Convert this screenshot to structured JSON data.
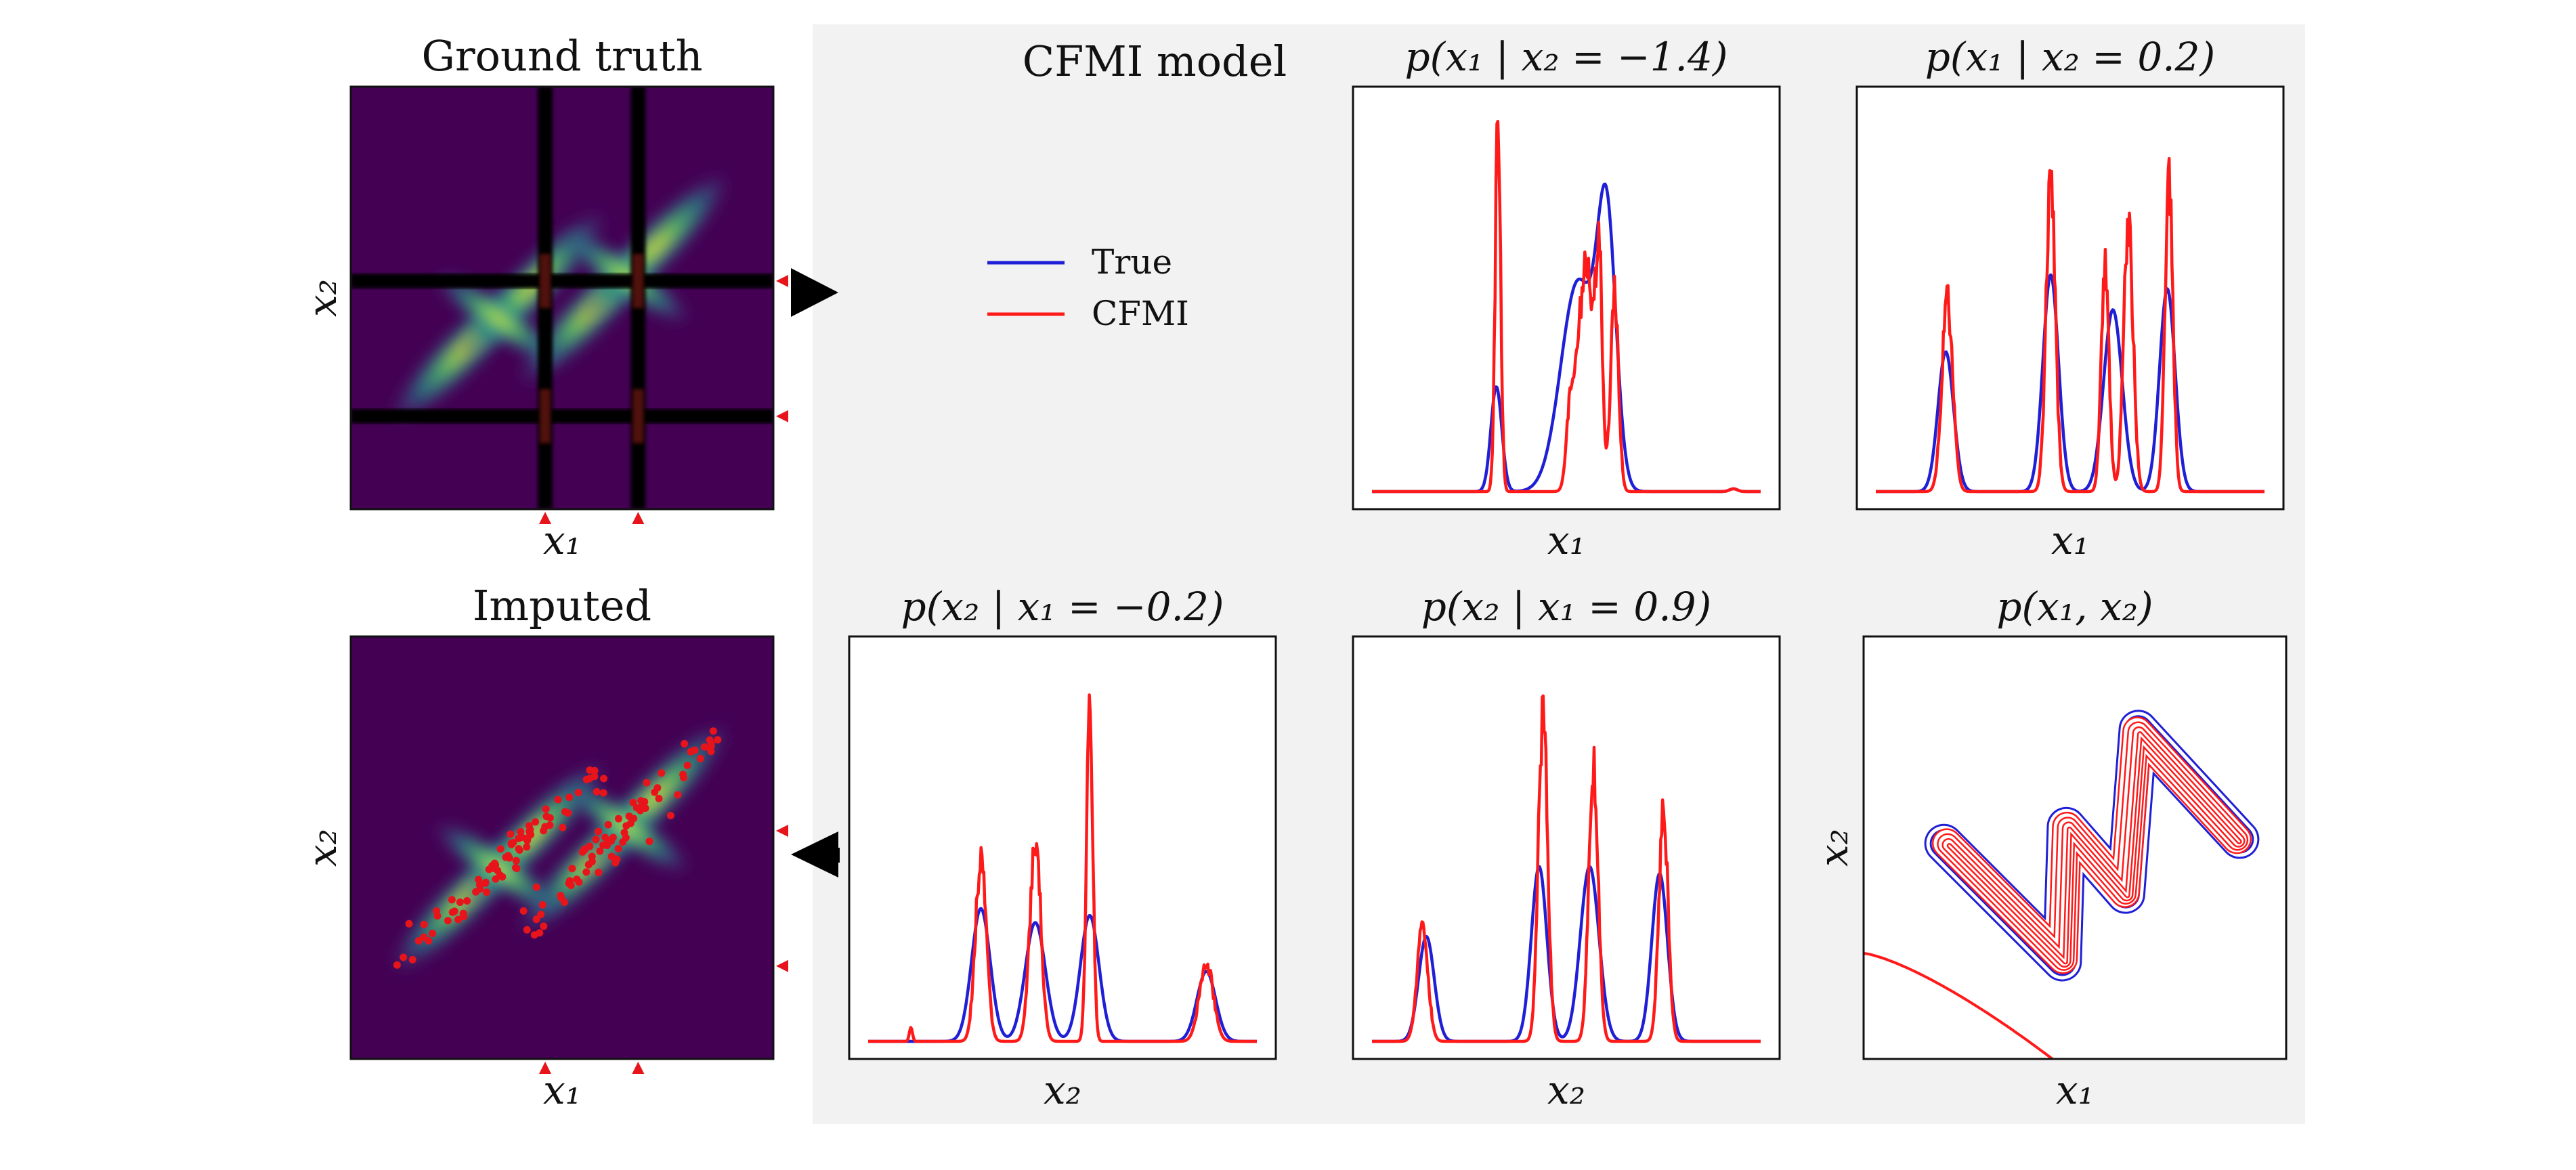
{
  "panel_heading": "CFMI model",
  "legend": [
    {
      "label": "True",
      "color": "#1f1fd6"
    },
    {
      "label": "CFMI",
      "color": "#ff1a1a"
    }
  ],
  "colors": {
    "true": "#1f1fd6",
    "cfmi": "#ff1a1a",
    "panel_bg": "#f2f2f2",
    "heat_bg": "#440154",
    "arrow": "#000000",
    "mask_strip": "#000000",
    "marker": "#e8141b"
  },
  "heatmaps": [
    {
      "title": "Ground truth",
      "xlabel": "x₁",
      "ylabel": "x₂"
    },
    {
      "title": "Imputed",
      "xlabel": "x₁",
      "ylabel": "x₂"
    }
  ],
  "chart_data": [
    {
      "type": "heatmap",
      "title": "Ground truth",
      "xlabel": "x₁",
      "ylabel": "x₂",
      "xlim": [
        -2.5,
        2.5
      ],
      "ylim": [
        -2.5,
        2.5
      ],
      "grid": false,
      "missing_strips_x1": [
        -0.2,
        0.9
      ],
      "missing_strips_x2": [
        -1.4,
        0.2
      ],
      "colormap": "viridis"
    },
    {
      "type": "heatmap",
      "title": "Imputed",
      "xlabel": "x₁",
      "ylabel": "x₂",
      "xlim": [
        -2.5,
        2.5
      ],
      "ylim": [
        -2.5,
        2.5
      ],
      "grid": false,
      "imputed_points": 160,
      "colormap": "viridis"
    },
    {
      "type": "line",
      "title": "p(x₁ | x₂ = −1.4)",
      "xlabel": "x₁",
      "xlim": [
        -2.5,
        2.5
      ],
      "series": [
        {
          "name": "True",
          "peaks": [
            [
              -0.9,
              0.07,
              0.75
            ],
            [
              0.15,
              0.22,
              1.5
            ],
            [
              0.52,
              0.12,
              1.8
            ],
            [
              4.2,
              0.05,
              0.02
            ]
          ]
        },
        {
          "name": "CFMI",
          "peaks": [
            [
              -0.88,
              0.035,
              2.6
            ],
            [
              0.25,
              0.1,
              1.6
            ],
            [
              0.42,
              0.04,
              1.5
            ],
            [
              0.62,
              0.05,
              1.4
            ],
            [
              0.05,
              0.05,
              0.5
            ],
            [
              4.2,
              0.05,
              0.02
            ]
          ]
        }
      ]
    },
    {
      "type": "line",
      "title": "p(x₁ | x₂ = 0.2)",
      "xlabel": "x₁",
      "xlim": [
        -2.5,
        2.5
      ],
      "series": [
        {
          "name": "True",
          "peaks": [
            [
              -1.6,
              0.1,
              1.0
            ],
            [
              -0.25,
              0.1,
              1.55
            ],
            [
              0.55,
              0.12,
              1.3
            ],
            [
              1.25,
              0.1,
              1.45
            ]
          ]
        },
        {
          "name": "CFMI",
          "peaks": [
            [
              -1.58,
              0.07,
              1.35
            ],
            [
              -0.25,
              0.06,
              2.15
            ],
            [
              0.45,
              0.05,
              1.6
            ],
            [
              0.75,
              0.06,
              1.9
            ],
            [
              1.27,
              0.05,
              2.3
            ]
          ]
        }
      ]
    },
    {
      "type": "line",
      "title": "p(x₂ | x₁ = −0.2)",
      "xlabel": "x₂",
      "xlim": [
        -2.5,
        2.5
      ],
      "series": [
        {
          "name": "True",
          "peaks": [
            [
              -1.05,
              0.12,
              0.95
            ],
            [
              -0.35,
              0.13,
              0.85
            ],
            [
              0.35,
              0.12,
              0.9
            ],
            [
              1.85,
              0.12,
              0.5
            ]
          ]
        },
        {
          "name": "CFMI",
          "peaks": [
            [
              -1.05,
              0.07,
              1.3
            ],
            [
              -0.35,
              0.07,
              1.45
            ],
            [
              0.35,
              0.04,
              2.3
            ],
            [
              1.85,
              0.09,
              0.55
            ],
            [
              -1.95,
              0.02,
              0.1
            ]
          ]
        }
      ]
    },
    {
      "type": "line",
      "title": "p(x₂ | x₁ = 0.9)",
      "xlabel": "x₂",
      "xlim": [
        -2.5,
        2.5
      ],
      "series": [
        {
          "name": "True",
          "peaks": [
            [
              -1.8,
              0.1,
              0.75
            ],
            [
              -0.35,
              0.1,
              1.25
            ],
            [
              0.3,
              0.12,
              1.25
            ],
            [
              1.2,
              0.1,
              1.2
            ]
          ]
        },
        {
          "name": "CFMI",
          "peaks": [
            [
              -1.85,
              0.07,
              0.8
            ],
            [
              -0.3,
              0.06,
              2.3
            ],
            [
              0.35,
              0.06,
              1.95
            ],
            [
              1.25,
              0.06,
              1.6
            ]
          ]
        }
      ]
    },
    {
      "type": "line",
      "title": "p(x₁, x₂)",
      "xlabel": "x₁",
      "ylabel": "x₂",
      "xlim": [
        -2.5,
        2.5
      ],
      "ylim": [
        -2.5,
        2.5
      ],
      "series": [
        {
          "name": "True"
        },
        {
          "name": "CFMI"
        }
      ]
    }
  ]
}
